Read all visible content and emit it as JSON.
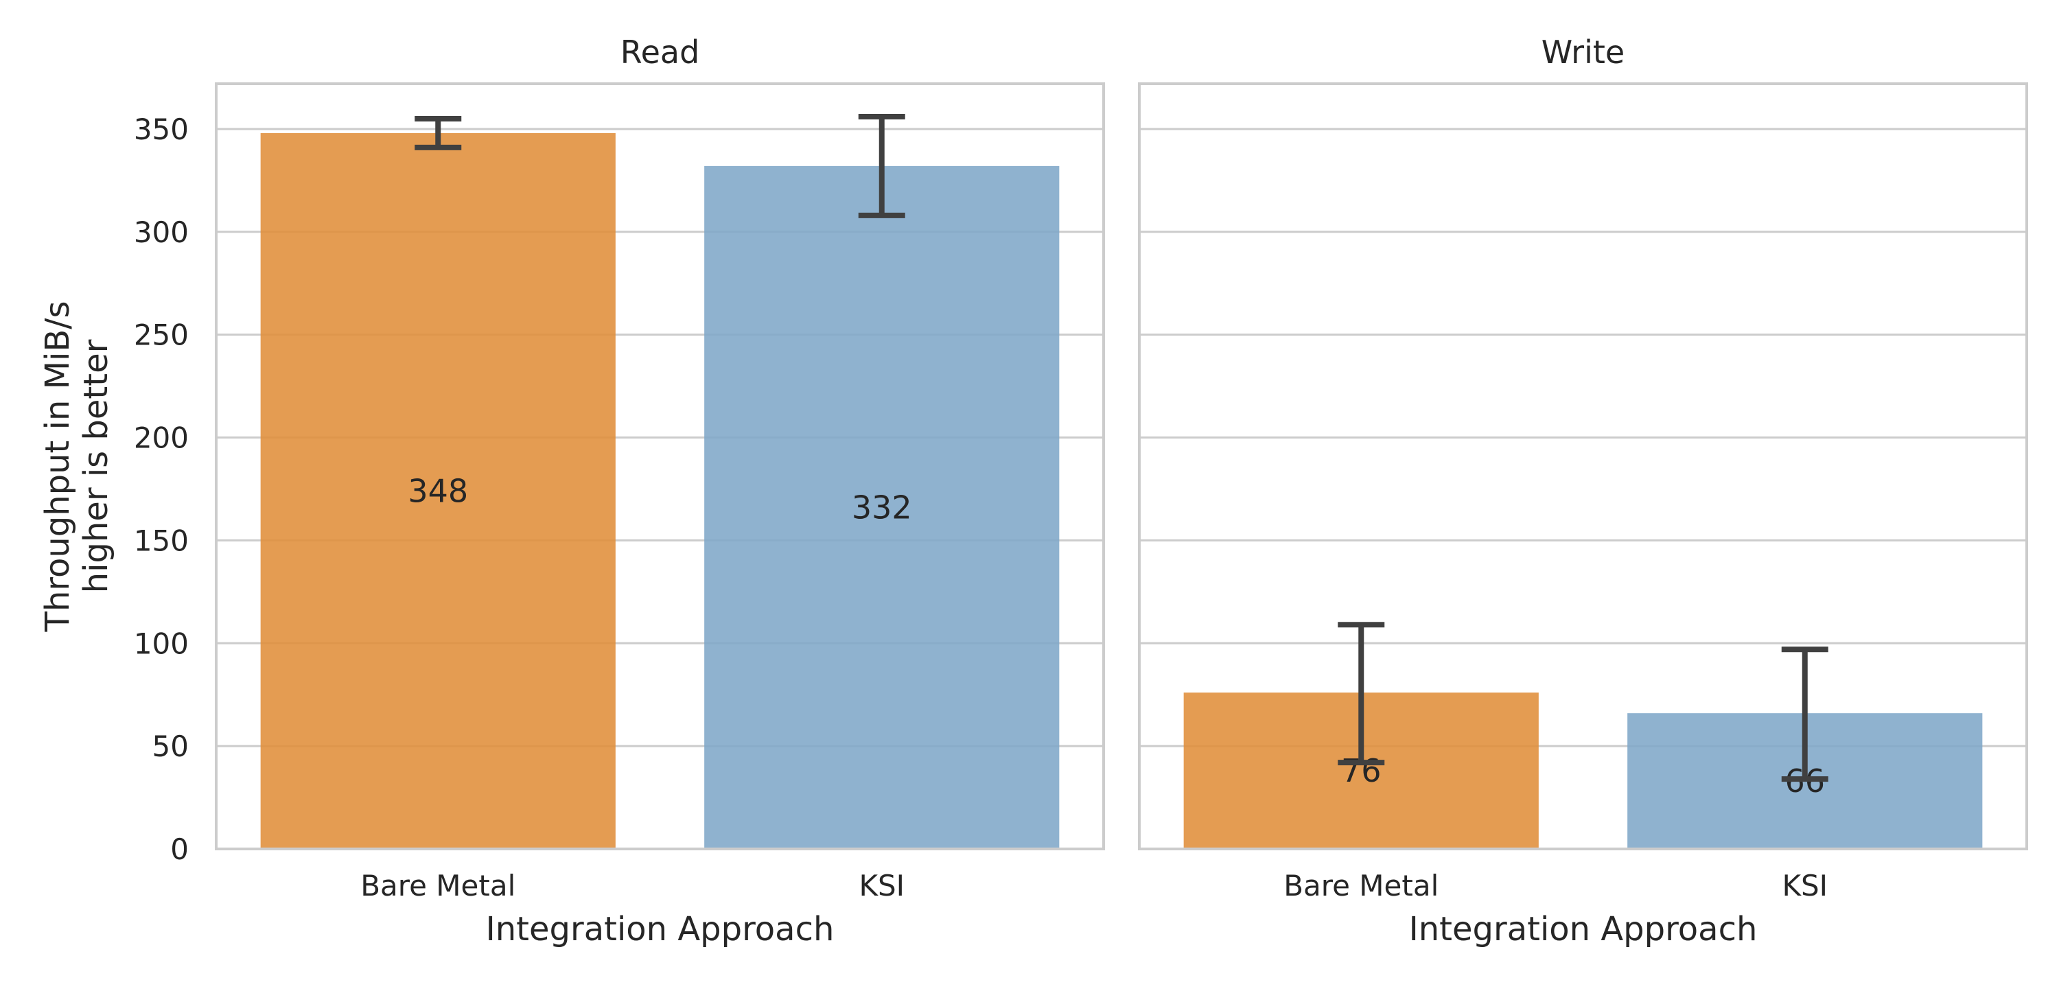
{
  "chart_data": {
    "type": "bar",
    "ylabel_lines": [
      "Throughput in MiB/s",
      "higher is better"
    ],
    "ylim": [
      0,
      372
    ],
    "yticks": [
      0,
      50,
      100,
      150,
      200,
      250,
      300,
      350
    ],
    "grid": true,
    "categories": [
      "Bare Metal",
      "KSI"
    ],
    "colors": {
      "Bare Metal": "#e08e3a",
      "KSI": "#80a7c8"
    },
    "panels": [
      {
        "title": "Read",
        "xlabel": "Integration Approach",
        "values": [
          348,
          332
        ],
        "value_labels": [
          "348",
          "332"
        ],
        "error_low": [
          341,
          308
        ],
        "error_high": [
          355,
          356
        ]
      },
      {
        "title": "Write",
        "xlabel": "Integration Approach",
        "values": [
          76,
          66
        ],
        "value_labels": [
          "76",
          "66"
        ],
        "error_low": [
          42,
          34
        ],
        "error_high": [
          109,
          97
        ]
      }
    ]
  }
}
